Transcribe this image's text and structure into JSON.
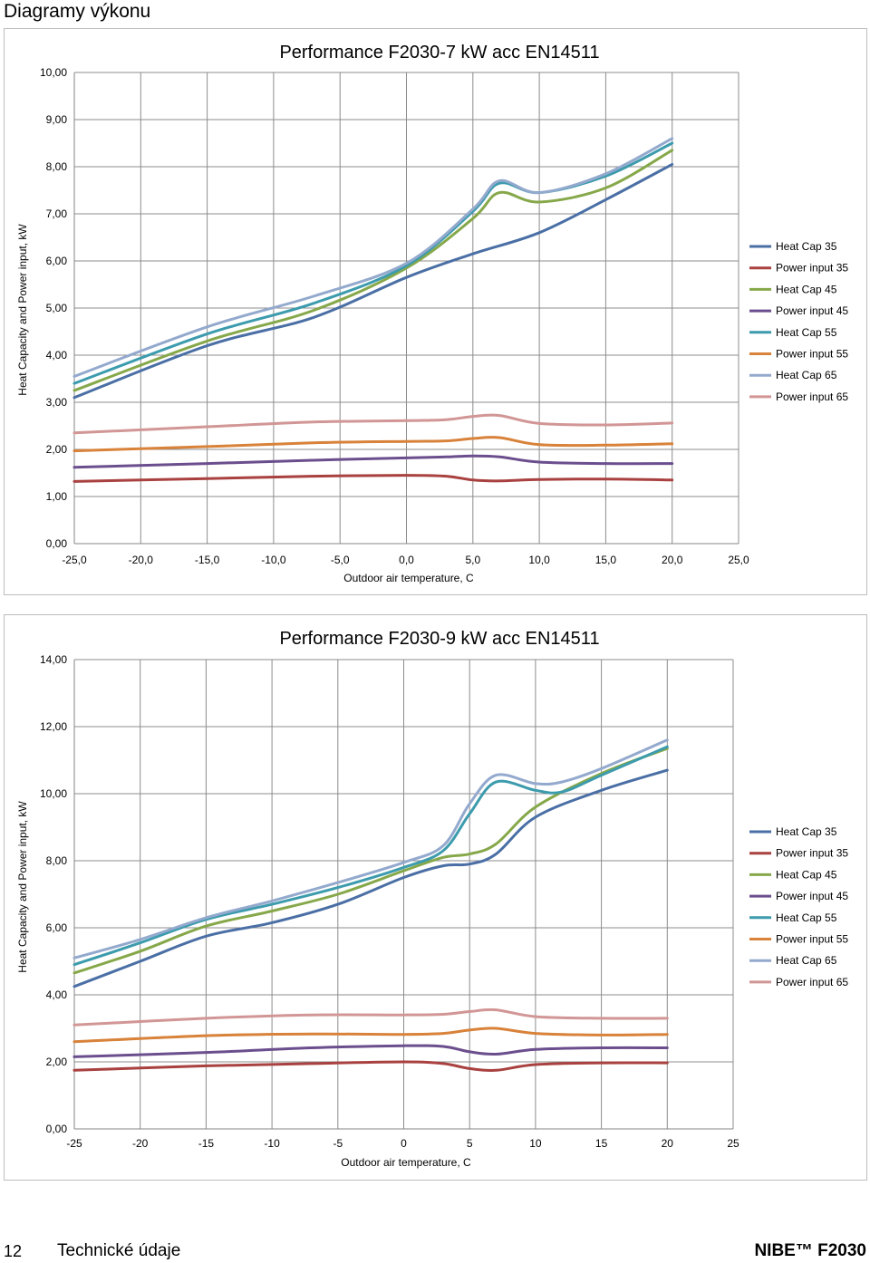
{
  "page": {
    "heading": "Diagramy výkonu",
    "footer": {
      "page_number": "12",
      "section": "Technické údaje",
      "brand": "NIBE™ F2030"
    }
  },
  "chart_data": [
    {
      "type": "line",
      "title": "Performance F2030-7 kW acc EN14511",
      "xlabel": "Outdoor air temperature, C",
      "ylabel": "Heat Capacity and Power input, kW",
      "xlim": [
        -25,
        25
      ],
      "ylim": [
        0,
        10
      ],
      "x_ticks": [
        -25,
        -20,
        -15,
        -10,
        -5,
        0,
        5,
        10,
        15,
        20,
        25
      ],
      "x_tick_labels": [
        "-25,0",
        "-20,0",
        "-15,0",
        "-10,0",
        "-5,0",
        "0,0",
        "5,0",
        "10,0",
        "15,0",
        "20,0",
        "25,0"
      ],
      "y_ticks": [
        0,
        1,
        2,
        3,
        4,
        5,
        6,
        7,
        8,
        9,
        10
      ],
      "y_tick_labels": [
        "0,00",
        "1,00",
        "2,00",
        "3,00",
        "4,00",
        "5,00",
        "6,00",
        "7,00",
        "8,00",
        "9,00",
        "10,00"
      ],
      "grid": "vertical and horizontal",
      "legend_position": "right",
      "series": [
        {
          "name": "Heat Cap 35",
          "color": "#4a6fa5",
          "x": [
            -25,
            -15,
            -7,
            0,
            5,
            10,
            15,
            20
          ],
          "y": [
            3.1,
            4.2,
            4.8,
            5.65,
            6.15,
            6.6,
            7.3,
            8.05
          ]
        },
        {
          "name": "Power input 35",
          "color": "#a8413f",
          "x": [
            -25,
            -15,
            -7,
            0,
            3,
            5,
            7,
            10,
            15,
            20
          ],
          "y": [
            1.32,
            1.38,
            1.43,
            1.45,
            1.43,
            1.35,
            1.33,
            1.36,
            1.37,
            1.35
          ]
        },
        {
          "name": "Heat Cap 45",
          "color": "#86a84a",
          "x": [
            -25,
            -15,
            -7,
            0,
            5,
            7,
            10,
            15,
            20
          ],
          "y": [
            3.25,
            4.3,
            4.95,
            5.85,
            6.9,
            7.45,
            7.25,
            7.55,
            8.35
          ]
        },
        {
          "name": "Power input 45",
          "color": "#6b4e8d",
          "x": [
            -25,
            -15,
            -7,
            0,
            3,
            5,
            7,
            10,
            15,
            20
          ],
          "y": [
            1.62,
            1.7,
            1.77,
            1.82,
            1.84,
            1.86,
            1.84,
            1.73,
            1.7,
            1.7
          ]
        },
        {
          "name": "Heat Cap 55",
          "color": "#3c9bad",
          "x": [
            -25,
            -15,
            -7,
            0,
            5,
            7,
            10,
            15,
            20
          ],
          "y": [
            3.4,
            4.45,
            5.1,
            5.9,
            7.05,
            7.65,
            7.45,
            7.8,
            8.5
          ]
        },
        {
          "name": "Power input 55",
          "color": "#d8823a",
          "x": [
            -25,
            -15,
            -7,
            0,
            3,
            5,
            7,
            10,
            15,
            20
          ],
          "y": [
            1.97,
            2.06,
            2.14,
            2.17,
            2.18,
            2.23,
            2.25,
            2.1,
            2.09,
            2.12
          ]
        },
        {
          "name": "Heat Cap 65",
          "color": "#93a9cd",
          "x": [
            -25,
            -15,
            -7,
            0,
            5,
            7,
            10,
            15,
            20
          ],
          "y": [
            3.55,
            4.6,
            5.25,
            5.95,
            7.1,
            7.7,
            7.45,
            7.85,
            8.6
          ]
        },
        {
          "name": "Power input 65",
          "color": "#d19695",
          "x": [
            -25,
            -15,
            -7,
            0,
            3,
            5,
            7,
            10,
            15,
            20
          ],
          "y": [
            2.35,
            2.48,
            2.58,
            2.61,
            2.63,
            2.7,
            2.72,
            2.55,
            2.52,
            2.56
          ]
        }
      ]
    },
    {
      "type": "line",
      "title": "Performance F2030-9 kW acc EN14511",
      "xlabel": "Outdoor air temperature, C",
      "ylabel": "Heat Capacity and Power input, kW",
      "xlim": [
        -25,
        25
      ],
      "ylim": [
        0,
        14
      ],
      "x_ticks": [
        -25,
        -20,
        -15,
        -10,
        -5,
        0,
        5,
        10,
        15,
        20,
        25
      ],
      "x_tick_labels": [
        "-25",
        "-20",
        "-15",
        "-10",
        "-5",
        "0",
        "5",
        "10",
        "15",
        "20",
        "25"
      ],
      "y_ticks": [
        0,
        2,
        4,
        6,
        8,
        10,
        12,
        14
      ],
      "y_tick_labels": [
        "0,00",
        "2,00",
        "4,00",
        "6,00",
        "8,00",
        "10,00",
        "12,00",
        "14,00"
      ],
      "grid": "vertical and horizontal",
      "legend_position": "right",
      "series": [
        {
          "name": "Heat Cap 35",
          "color": "#4a6fa5",
          "x": [
            -25,
            -20,
            -15,
            -10,
            -5,
            0,
            3,
            5,
            7,
            10,
            15,
            20
          ],
          "y": [
            4.25,
            5.0,
            5.75,
            6.15,
            6.7,
            7.5,
            7.85,
            7.9,
            8.2,
            9.3,
            10.1,
            10.7
          ]
        },
        {
          "name": "Power input 35",
          "color": "#a8413f",
          "x": [
            -25,
            -15,
            -7,
            0,
            3,
            5,
            7,
            10,
            15,
            20
          ],
          "y": [
            1.75,
            1.88,
            1.95,
            2.0,
            1.95,
            1.8,
            1.75,
            1.92,
            1.97,
            1.97
          ]
        },
        {
          "name": "Heat Cap 45",
          "color": "#86a84a",
          "x": [
            -25,
            -20,
            -15,
            -10,
            -5,
            0,
            3,
            5,
            7,
            10,
            15,
            20
          ],
          "y": [
            4.65,
            5.3,
            6.05,
            6.5,
            7.0,
            7.7,
            8.1,
            8.2,
            8.5,
            9.6,
            10.6,
            11.35
          ]
        },
        {
          "name": "Power input 45",
          "color": "#6b4e8d",
          "x": [
            -25,
            -15,
            -7,
            0,
            3,
            5,
            7,
            10,
            15,
            20
          ],
          "y": [
            2.15,
            2.28,
            2.42,
            2.48,
            2.46,
            2.3,
            2.23,
            2.37,
            2.42,
            2.42
          ]
        },
        {
          "name": "Heat Cap 55",
          "color": "#3c9bad",
          "x": [
            -25,
            -20,
            -15,
            -10,
            -5,
            0,
            3,
            5,
            7,
            10,
            12,
            15,
            20
          ],
          "y": [
            4.9,
            5.55,
            6.25,
            6.7,
            7.2,
            7.8,
            8.3,
            9.4,
            10.35,
            10.1,
            10.05,
            10.55,
            11.4
          ]
        },
        {
          "name": "Power input 55",
          "color": "#d8823a",
          "x": [
            -25,
            -15,
            -7,
            0,
            3,
            5,
            7,
            10,
            15,
            20
          ],
          "y": [
            2.6,
            2.78,
            2.83,
            2.82,
            2.85,
            2.95,
            3.0,
            2.85,
            2.8,
            2.82
          ]
        },
        {
          "name": "Heat Cap 65",
          "color": "#93a9cd",
          "x": [
            -25,
            -20,
            -15,
            -10,
            -5,
            0,
            3,
            5,
            7,
            10,
            12,
            15,
            20
          ],
          "y": [
            5.1,
            5.65,
            6.3,
            6.8,
            7.35,
            7.95,
            8.45,
            9.7,
            10.55,
            10.3,
            10.35,
            10.75,
            11.6
          ]
        },
        {
          "name": "Power input 65",
          "color": "#d19695",
          "x": [
            -25,
            -15,
            -7,
            0,
            3,
            5,
            7,
            10,
            15,
            20
          ],
          "y": [
            3.1,
            3.3,
            3.4,
            3.4,
            3.42,
            3.5,
            3.55,
            3.35,
            3.3,
            3.3
          ]
        }
      ]
    }
  ]
}
